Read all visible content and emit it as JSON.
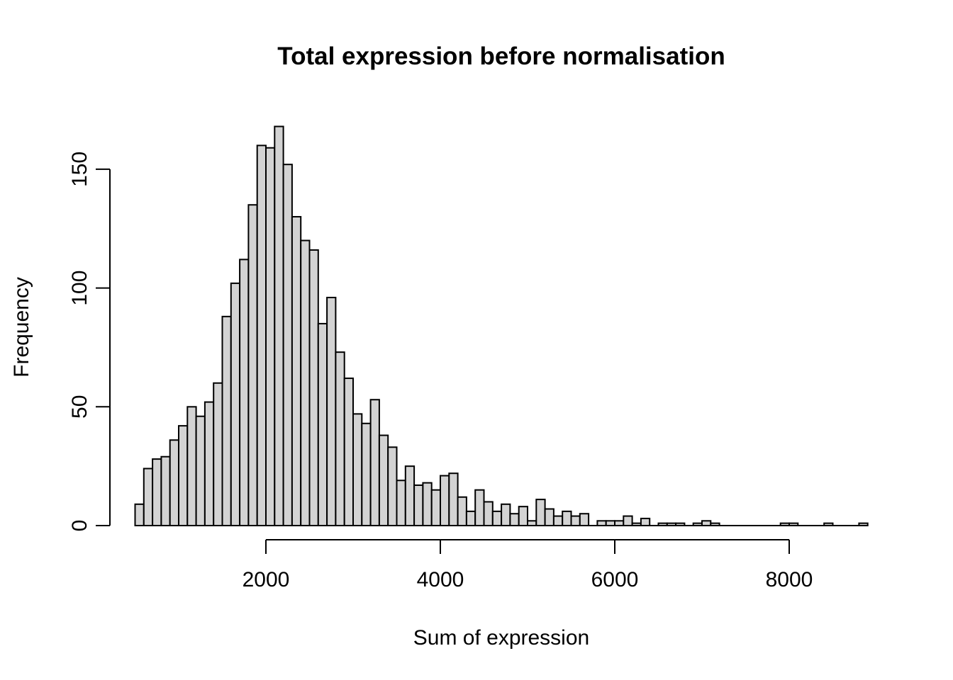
{
  "page": {
    "background": "#ffffff"
  },
  "chart_data": {
    "type": "bar",
    "subtype": "histogram",
    "title": "Total expression before normalisation",
    "xlabel": "Sum of expression",
    "ylabel": "Frequency",
    "bin_start": 500,
    "bin_width": 100,
    "counts": [
      9,
      24,
      28,
      29,
      36,
      42,
      50,
      46,
      52,
      60,
      88,
      102,
      112,
      135,
      160,
      159,
      168,
      152,
      130,
      120,
      116,
      85,
      96,
      73,
      62,
      47,
      43,
      53,
      38,
      33,
      19,
      25,
      17,
      18,
      15,
      21,
      22,
      12,
      6,
      15,
      10,
      6,
      9,
      5,
      8,
      2,
      11,
      7,
      4,
      6,
      4,
      5,
      0,
      2,
      2,
      2,
      4,
      1,
      3,
      0,
      1,
      1,
      1,
      0,
      1,
      2,
      1,
      0,
      0,
      0,
      0,
      0,
      0,
      0,
      1,
      1,
      0,
      0,
      0,
      1,
      0,
      0,
      0,
      1
    ],
    "x_ticks": [
      2000,
      4000,
      6000,
      8000
    ],
    "y_ticks": [
      0,
      50,
      100,
      150
    ],
    "xlim": [
      500,
      8900
    ],
    "ylim": [
      0,
      168
    ],
    "grid": false,
    "legend_position": "none",
    "bar_fill": "#d3d3d3",
    "bar_stroke": "#000000",
    "text_color": "#000000"
  }
}
